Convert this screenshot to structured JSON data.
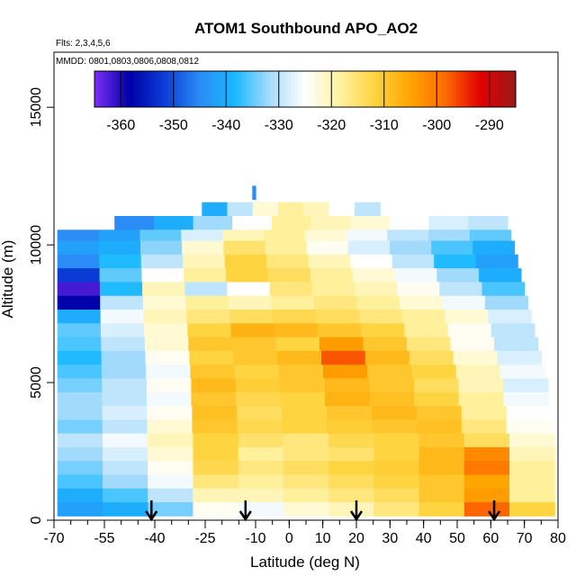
{
  "chart_data": {
    "type": "heatmap",
    "title": "ATOM1 Southbound APO_AO2",
    "subtitle_flights": "Flts: 2,3,4,5,6",
    "subtitle_dates": "MMDD: 0801,0803,0806,0808,0812",
    "xlabel": "Latitude (deg N)",
    "ylabel": "Altitude (m)",
    "xlim": [
      -70,
      80
    ],
    "ylim": [
      0,
      17000
    ],
    "x_ticks": [
      "-70",
      "-55",
      "-40",
      "-25",
      "-10",
      "0",
      "10",
      "20",
      "30",
      "40",
      "50",
      "60",
      "70",
      "80"
    ],
    "x_tick_values": [
      -70,
      -55,
      -40,
      -25,
      -10,
      0,
      10,
      20,
      30,
      40,
      50,
      60,
      70,
      80
    ],
    "y_ticks": [
      "0",
      "5000",
      "10000",
      "15000"
    ],
    "y_tick_values": [
      0,
      5000,
      10000,
      15000
    ],
    "colorbar": {
      "ticks": [
        "-360",
        "-350",
        "-340",
        "-330",
        "-320",
        "-310",
        "-300",
        "-290"
      ],
      "tick_values": [
        -360,
        -350,
        -340,
        -330,
        -320,
        -310,
        -300,
        -290
      ],
      "range": [
        -365,
        -285
      ],
      "colors": [
        "#7b2ff7",
        "#0000a8",
        "#0a3ed6",
        "#2b8cf5",
        "#19b8ff",
        "#a8dcfa",
        "#ffffff",
        "#fff2a0",
        "#ffd23c",
        "#ffa500",
        "#ff6a00",
        "#e00000",
        "#9b1a1a"
      ]
    },
    "profile_arrows_lat": [
      -41,
      -13,
      20,
      61
    ],
    "rows": [
      {
        "alt": 11900,
        "lat0": -11,
        "lat1": -10,
        "values": [
          -345
        ]
      },
      {
        "alt": 11300,
        "lat0": -26,
        "lat1": 27,
        "values": [
          -340,
          -330,
          -322,
          -318,
          -320,
          -325,
          -330
        ]
      },
      {
        "alt": 10800,
        "lat0": -52,
        "lat1": 65,
        "values": [
          -345,
          -340,
          -332,
          -325,
          -318,
          -320,
          -322,
          -325,
          -328,
          -330
        ]
      },
      {
        "alt": 10300,
        "lat0": -69,
        "lat1": 66,
        "values": [
          -345,
          -342,
          -335,
          -328,
          -320,
          -318,
          -322,
          -326,
          -330,
          -332,
          -335
        ]
      },
      {
        "alt": 9900,
        "lat0": -69,
        "lat1": 67,
        "values": [
          -342,
          -340,
          -333,
          -322,
          -315,
          -318,
          -324,
          -328,
          -332,
          -336,
          -340
        ]
      },
      {
        "alt": 9400,
        "lat0": -69,
        "lat1": 68,
        "values": [
          -345,
          -338,
          -330,
          -320,
          -312,
          -316,
          -320,
          -325,
          -330,
          -338,
          -342
        ]
      },
      {
        "alt": 8900,
        "lat0": -69,
        "lat1": 69,
        "values": [
          -352,
          -335,
          -325,
          -318,
          -312,
          -314,
          -318,
          -322,
          -326,
          -332,
          -340
        ]
      },
      {
        "alt": 8400,
        "lat0": -69,
        "lat1": 70,
        "values": [
          -362,
          -338,
          -320,
          -330,
          -325,
          -316,
          -318,
          -320,
          -324,
          -330,
          -336
        ]
      },
      {
        "alt": 7900,
        "lat0": -69,
        "lat1": 71,
        "values": [
          -358,
          -330,
          -322,
          -318,
          -320,
          -318,
          -316,
          -318,
          -322,
          -326,
          -332
        ]
      },
      {
        "alt": 7400,
        "lat0": -69,
        "lat1": 72,
        "values": [
          -340,
          -326,
          -320,
          -316,
          -314,
          -313,
          -314,
          -316,
          -318,
          -322,
          -328
        ]
      },
      {
        "alt": 6900,
        "lat0": -69,
        "lat1": 73,
        "values": [
          -335,
          -328,
          -322,
          -312,
          -307,
          -308,
          -310,
          -312,
          -318,
          -324,
          -330
        ]
      },
      {
        "alt": 6400,
        "lat0": -69,
        "lat1": 74,
        "values": [
          -336,
          -330,
          -322,
          -310,
          -310,
          -312,
          -304,
          -310,
          -316,
          -324,
          -330
        ]
      },
      {
        "alt": 5900,
        "lat0": -69,
        "lat1": 75,
        "values": [
          -338,
          -332,
          -324,
          -312,
          -310,
          -308,
          -297,
          -308,
          -314,
          -322,
          -328
        ]
      },
      {
        "alt": 5400,
        "lat0": -69,
        "lat1": 76,
        "values": [
          -336,
          -332,
          -326,
          -310,
          -312,
          -310,
          -304,
          -310,
          -312,
          -320,
          -326
        ]
      },
      {
        "alt": 4900,
        "lat0": -69,
        "lat1": 77,
        "values": [
          -334,
          -330,
          -324,
          -308,
          -311,
          -310,
          -308,
          -310,
          -314,
          -320,
          -328
        ]
      },
      {
        "alt": 4400,
        "lat0": -69,
        "lat1": 77,
        "values": [
          -332,
          -330,
          -326,
          -310,
          -313,
          -312,
          -307,
          -309,
          -312,
          -318,
          -326
        ]
      },
      {
        "alt": 3900,
        "lat0": -69,
        "lat1": 78,
        "values": [
          -332,
          -328,
          -324,
          -309,
          -314,
          -312,
          -310,
          -308,
          -310,
          -318,
          -325
        ]
      },
      {
        "alt": 3400,
        "lat0": -69,
        "lat1": 78,
        "values": [
          -334,
          -330,
          -322,
          -310,
          -313,
          -312,
          -311,
          -310,
          -309,
          -316,
          -324
        ]
      },
      {
        "alt": 2900,
        "lat0": -69,
        "lat1": 79,
        "values": [
          -330,
          -326,
          -320,
          -312,
          -315,
          -316,
          -313,
          -312,
          -310,
          -314,
          -322
        ]
      },
      {
        "alt": 2400,
        "lat0": -69,
        "lat1": 79,
        "values": [
          -332,
          -328,
          -322,
          -312,
          -318,
          -316,
          -315,
          -312,
          -308,
          -302,
          -320
        ]
      },
      {
        "alt": 1900,
        "lat0": -69,
        "lat1": 79,
        "values": [
          -334,
          -330,
          -324,
          -313,
          -316,
          -314,
          -312,
          -311,
          -308,
          -300,
          -318
        ]
      },
      {
        "alt": 1400,
        "lat0": -69,
        "lat1": 79,
        "values": [
          -336,
          -332,
          -326,
          -316,
          -318,
          -316,
          -314,
          -312,
          -310,
          -305,
          -318
        ]
      },
      {
        "alt": 900,
        "lat0": -69,
        "lat1": 79,
        "values": [
          -340,
          -336,
          -330,
          -320,
          -320,
          -318,
          -316,
          -314,
          -310,
          -304,
          -318
        ]
      },
      {
        "alt": 400,
        "lat0": -69,
        "lat1": 79,
        "values": [
          -342,
          -340,
          -334,
          -324,
          -326,
          -322,
          -320,
          -316,
          -312,
          -298,
          -312
        ]
      }
    ]
  }
}
